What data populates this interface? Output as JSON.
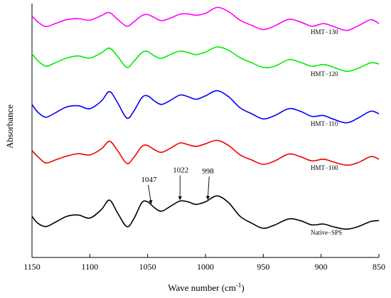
{
  "chart_data": {
    "type": "line",
    "xlabel": "Wave number (cm",
    "xlabel_sup": "-1",
    "xlabel_close": ")",
    "ylabel": "Absorbance",
    "xlim": [
      1150,
      850
    ],
    "x_ticks": [
      1150,
      1100,
      1050,
      1000,
      950,
      900,
      850
    ],
    "grid": false,
    "y_ticks_shown": false,
    "series": [
      {
        "name": "HMT−130",
        "color": "#ff00ff",
        "points": [
          [
            1150,
            1.9
          ],
          [
            1145,
            1.55
          ],
          [
            1138,
            1.28
          ],
          [
            1130,
            1.45
          ],
          [
            1120,
            1.68
          ],
          [
            1110,
            1.74
          ],
          [
            1100,
            1.65
          ],
          [
            1090,
            1.92
          ],
          [
            1083,
            2.1
          ],
          [
            1076,
            1.7
          ],
          [
            1068,
            1.3
          ],
          [
            1062,
            1.55
          ],
          [
            1055,
            1.92
          ],
          [
            1050,
            1.98
          ],
          [
            1044,
            1.8
          ],
          [
            1038,
            1.62
          ],
          [
            1030,
            1.78
          ],
          [
            1022,
            2.0
          ],
          [
            1015,
            2.02
          ],
          [
            1008,
            1.94
          ],
          [
            1000,
            2.05
          ],
          [
            990,
            2.4
          ],
          [
            980,
            2.15
          ],
          [
            970,
            1.65
          ],
          [
            960,
            1.35
          ],
          [
            950,
            1.1
          ],
          [
            940,
            1.32
          ],
          [
            928,
            1.7
          ],
          [
            918,
            1.55
          ],
          [
            908,
            1.3
          ],
          [
            898,
            1.45
          ],
          [
            890,
            1.3
          ],
          [
            878,
            1.05
          ],
          [
            868,
            1.32
          ],
          [
            857,
            1.68
          ],
          [
            850,
            1.45
          ]
        ]
      },
      {
        "name": "HMT−120",
        "color": "#00ee00",
        "points": [
          [
            1150,
            1.85
          ],
          [
            1145,
            1.45
          ],
          [
            1138,
            1.12
          ],
          [
            1130,
            1.32
          ],
          [
            1120,
            1.6
          ],
          [
            1110,
            1.72
          ],
          [
            1100,
            1.6
          ],
          [
            1090,
            1.9
          ],
          [
            1083,
            2.18
          ],
          [
            1076,
            1.7
          ],
          [
            1068,
            1.05
          ],
          [
            1062,
            1.4
          ],
          [
            1055,
            1.92
          ],
          [
            1050,
            1.98
          ],
          [
            1044,
            1.72
          ],
          [
            1038,
            1.58
          ],
          [
            1030,
            1.82
          ],
          [
            1022,
            2.0
          ],
          [
            1015,
            1.92
          ],
          [
            1008,
            1.8
          ],
          [
            1000,
            1.95
          ],
          [
            990,
            2.25
          ],
          [
            980,
            2.05
          ],
          [
            970,
            1.62
          ],
          [
            960,
            1.32
          ],
          [
            950,
            1.05
          ],
          [
            940,
            1.12
          ],
          [
            928,
            1.5
          ],
          [
            918,
            1.35
          ],
          [
            908,
            1.12
          ],
          [
            898,
            1.22
          ],
          [
            890,
            1.08
          ],
          [
            878,
            0.82
          ],
          [
            868,
            1.0
          ],
          [
            857,
            1.32
          ],
          [
            850,
            1.25
          ]
        ]
      },
      {
        "name": "HMT−110",
        "color": "#0000ff",
        "points": [
          [
            1150,
            1.8
          ],
          [
            1145,
            1.35
          ],
          [
            1138,
            1.05
          ],
          [
            1130,
            1.3
          ],
          [
            1120,
            1.65
          ],
          [
            1110,
            1.72
          ],
          [
            1100,
            1.55
          ],
          [
            1090,
            2.0
          ],
          [
            1083,
            2.55
          ],
          [
            1076,
            1.9
          ],
          [
            1068,
            1.0
          ],
          [
            1062,
            1.4
          ],
          [
            1055,
            2.2
          ],
          [
            1050,
            2.3
          ],
          [
            1044,
            2.0
          ],
          [
            1038,
            1.8
          ],
          [
            1030,
            2.05
          ],
          [
            1022,
            2.35
          ],
          [
            1015,
            2.25
          ],
          [
            1008,
            2.1
          ],
          [
            1000,
            2.3
          ],
          [
            990,
            2.6
          ],
          [
            980,
            2.25
          ],
          [
            970,
            1.6
          ],
          [
            960,
            1.25
          ],
          [
            950,
            0.95
          ],
          [
            940,
            1.15
          ],
          [
            928,
            1.55
          ],
          [
            918,
            1.4
          ],
          [
            908,
            1.1
          ],
          [
            898,
            1.15
          ],
          [
            890,
            0.95
          ],
          [
            878,
            0.72
          ],
          [
            868,
            1.0
          ],
          [
            857,
            1.4
          ],
          [
            850,
            1.25
          ]
        ]
      },
      {
        "name": "HMT−100",
        "color": "#ee0000",
        "points": [
          [
            1150,
            1.8
          ],
          [
            1145,
            1.45
          ],
          [
            1138,
            1.08
          ],
          [
            1130,
            1.25
          ],
          [
            1120,
            1.48
          ],
          [
            1110,
            1.62
          ],
          [
            1100,
            1.55
          ],
          [
            1090,
            1.9
          ],
          [
            1083,
            2.35
          ],
          [
            1076,
            1.8
          ],
          [
            1068,
            1.05
          ],
          [
            1062,
            1.4
          ],
          [
            1055,
            2.05
          ],
          [
            1050,
            2.1
          ],
          [
            1044,
            1.85
          ],
          [
            1038,
            1.7
          ],
          [
            1030,
            1.95
          ],
          [
            1022,
            2.25
          ],
          [
            1015,
            2.15
          ],
          [
            1008,
            2.05
          ],
          [
            1000,
            2.2
          ],
          [
            990,
            2.4
          ],
          [
            980,
            2.1
          ],
          [
            970,
            1.55
          ],
          [
            960,
            1.25
          ],
          [
            950,
            1.0
          ],
          [
            940,
            1.2
          ],
          [
            928,
            1.6
          ],
          [
            918,
            1.45
          ],
          [
            908,
            1.2
          ],
          [
            898,
            1.3
          ],
          [
            890,
            1.15
          ],
          [
            878,
            0.95
          ],
          [
            868,
            1.1
          ],
          [
            857,
            1.45
          ],
          [
            850,
            1.3
          ]
        ]
      },
      {
        "name": "Native−SPS",
        "color": "#000000",
        "points": [
          [
            1150,
            1.7
          ],
          [
            1145,
            1.3
          ],
          [
            1138,
            1.1
          ],
          [
            1130,
            1.35
          ],
          [
            1120,
            1.7
          ],
          [
            1110,
            1.78
          ],
          [
            1100,
            1.6
          ],
          [
            1090,
            2.1
          ],
          [
            1083,
            2.65
          ],
          [
            1076,
            1.9
          ],
          [
            1068,
            1.1
          ],
          [
            1062,
            1.55
          ],
          [
            1055,
            2.5
          ],
          [
            1050,
            2.55
          ],
          [
            1044,
            2.2
          ],
          [
            1038,
            2.0
          ],
          [
            1030,
            2.3
          ],
          [
            1022,
            2.6
          ],
          [
            1015,
            2.55
          ],
          [
            1008,
            2.4
          ],
          [
            1000,
            2.55
          ],
          [
            990,
            2.9
          ],
          [
            980,
            2.5
          ],
          [
            970,
            1.7
          ],
          [
            960,
            1.3
          ],
          [
            950,
            1.0
          ],
          [
            940,
            1.2
          ],
          [
            928,
            1.55
          ],
          [
            918,
            1.45
          ],
          [
            908,
            1.2
          ],
          [
            898,
            1.25
          ],
          [
            890,
            1.1
          ],
          [
            878,
            0.95
          ],
          [
            868,
            1.1
          ],
          [
            857,
            1.4
          ],
          [
            850,
            1.45
          ]
        ]
      }
    ],
    "annotations": [
      {
        "text": "1047",
        "x": 1047,
        "series_index": 4
      },
      {
        "text": "1022",
        "x": 1022,
        "series_index": 4
      },
      {
        "text": "998",
        "x": 998,
        "series_index": 4
      }
    ]
  }
}
